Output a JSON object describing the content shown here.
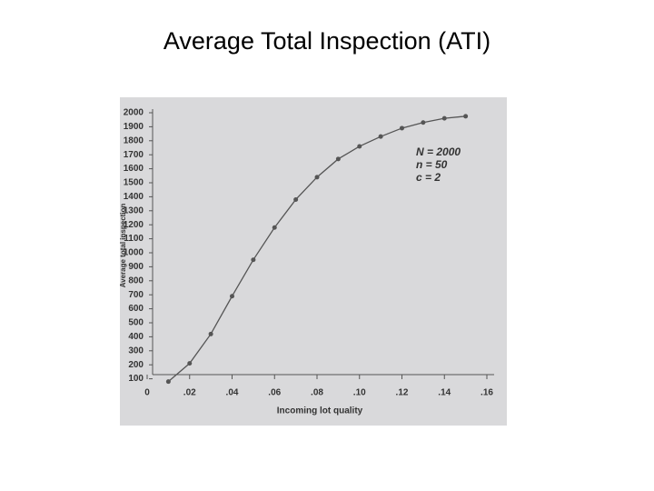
{
  "title": "Average Total Inspection (ATI)",
  "chart_data": {
    "type": "line",
    "xlabel": "Incoming lot quality",
    "ylabel": "Average total inspection",
    "annotations": [
      "N = 2000",
      "n = 50",
      "c = 2"
    ],
    "x": [
      0.01,
      0.02,
      0.03,
      0.04,
      0.05,
      0.06,
      0.07,
      0.08,
      0.09,
      0.1,
      0.11,
      0.12,
      0.13,
      0.14,
      0.15
    ],
    "series": [
      {
        "color": "#555555",
        "values": [
          80,
          210,
          420,
          690,
          950,
          1180,
          1380,
          1540,
          1670,
          1760,
          1830,
          1890,
          1930,
          1960,
          1975
        ]
      }
    ],
    "xlim": [
      0,
      0.16
    ],
    "ylim": [
      0,
      2000
    ],
    "xticks": [
      0,
      {
        "value": 0.02,
        "label": ".02"
      },
      {
        "value": 0.04,
        "label": ".04"
      },
      {
        "value": 0.06,
        "label": ".06"
      },
      {
        "value": 0.08,
        "label": ".08"
      },
      {
        "value": 0.1,
        "label": ".10"
      },
      {
        "value": 0.12,
        "label": ".12"
      },
      {
        "value": 0.14,
        "label": ".14"
      },
      {
        "value": 0.16,
        "label": ".16"
      }
    ],
    "yticks": [
      100,
      200,
      300,
      400,
      500,
      600,
      700,
      800,
      900,
      1000,
      1100,
      1200,
      1300,
      1400,
      1500,
      1600,
      1700,
      1800,
      1900,
      2000
    ],
    "grid": false
  }
}
